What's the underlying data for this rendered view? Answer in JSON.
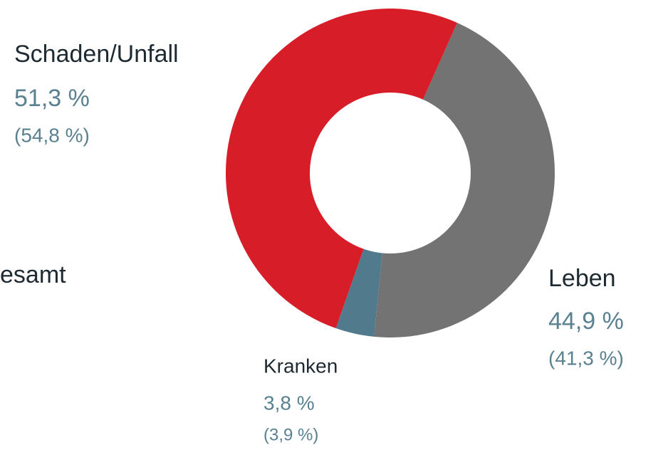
{
  "chart_data": {
    "type": "donut",
    "categories": [
      "Leben",
      "Kranken",
      "Schaden/Unfall"
    ],
    "values": [
      44.9,
      3.8,
      51.3
    ],
    "value_labels": [
      "44,9 %",
      "3,8 %",
      "51,3 %"
    ],
    "prior_values": [
      41.3,
      3.9,
      54.8
    ],
    "prior_value_labels": [
      "(41,3 %)",
      "(3,9 %)",
      "(54,8 %)"
    ],
    "colors": [
      "#737373",
      "#517b8c",
      "#d71e28"
    ],
    "center_label": "esamt"
  }
}
